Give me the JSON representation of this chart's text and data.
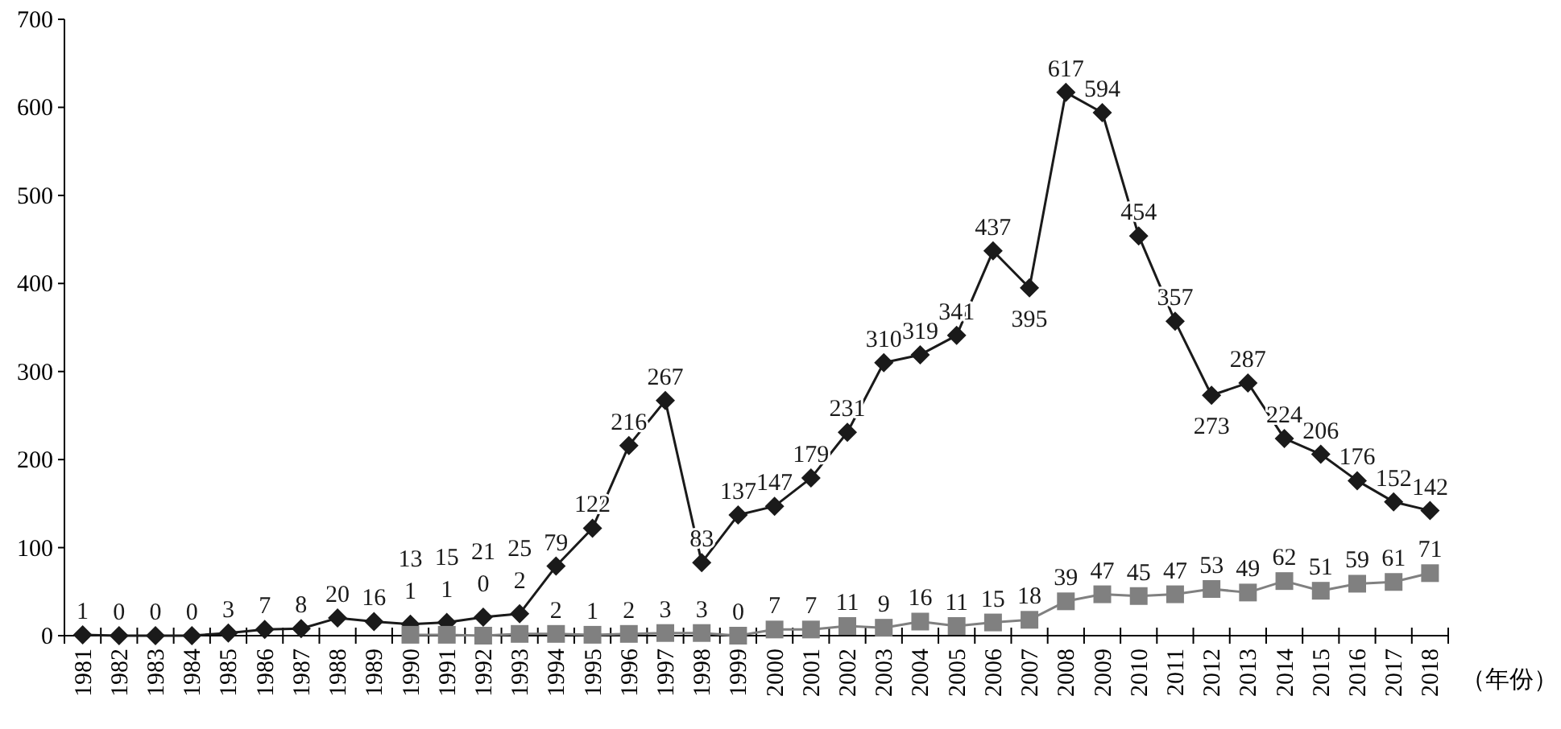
{
  "chart_data": {
    "type": "line",
    "xlabel": "（年份）",
    "categories": [
      "1981",
      "1982",
      "1983",
      "1984",
      "1985",
      "1986",
      "1987",
      "1988",
      "1989",
      "1990",
      "1991",
      "1992",
      "1993",
      "1994",
      "1995",
      "1996",
      "1997",
      "1998",
      "1999",
      "2000",
      "2001",
      "2002",
      "2003",
      "2004",
      "2005",
      "2006",
      "2007",
      "2008",
      "2009",
      "2010",
      "2011",
      "2012",
      "2013",
      "2014",
      "2015",
      "2016",
      "2017",
      "2018"
    ],
    "series": [
      {
        "color": "#1a1a1a",
        "marker": "diamond",
        "values": [
          1,
          0,
          0,
          0,
          3,
          7,
          8,
          20,
          16,
          13,
          15,
          21,
          25,
          79,
          122,
          216,
          267,
          83,
          137,
          147,
          179,
          231,
          310,
          319,
          341,
          437,
          395,
          617,
          594,
          454,
          357,
          273,
          287,
          224,
          206,
          176,
          152,
          142
        ]
      },
      {
        "color": "#808080",
        "marker": "square",
        "values": [
          null,
          null,
          null,
          null,
          null,
          null,
          null,
          null,
          null,
          1,
          1,
          0,
          2,
          2,
          1,
          2,
          3,
          3,
          0,
          7,
          7,
          11,
          9,
          16,
          11,
          15,
          18,
          39,
          47,
          45,
          47,
          53,
          49,
          62,
          51,
          59,
          61,
          71
        ]
      }
    ],
    "ylim": [
      0,
      700
    ],
    "yticks": [
      0,
      100,
      200,
      300,
      400,
      500,
      600,
      700
    ],
    "data_labels": true,
    "line_style": "solid"
  }
}
